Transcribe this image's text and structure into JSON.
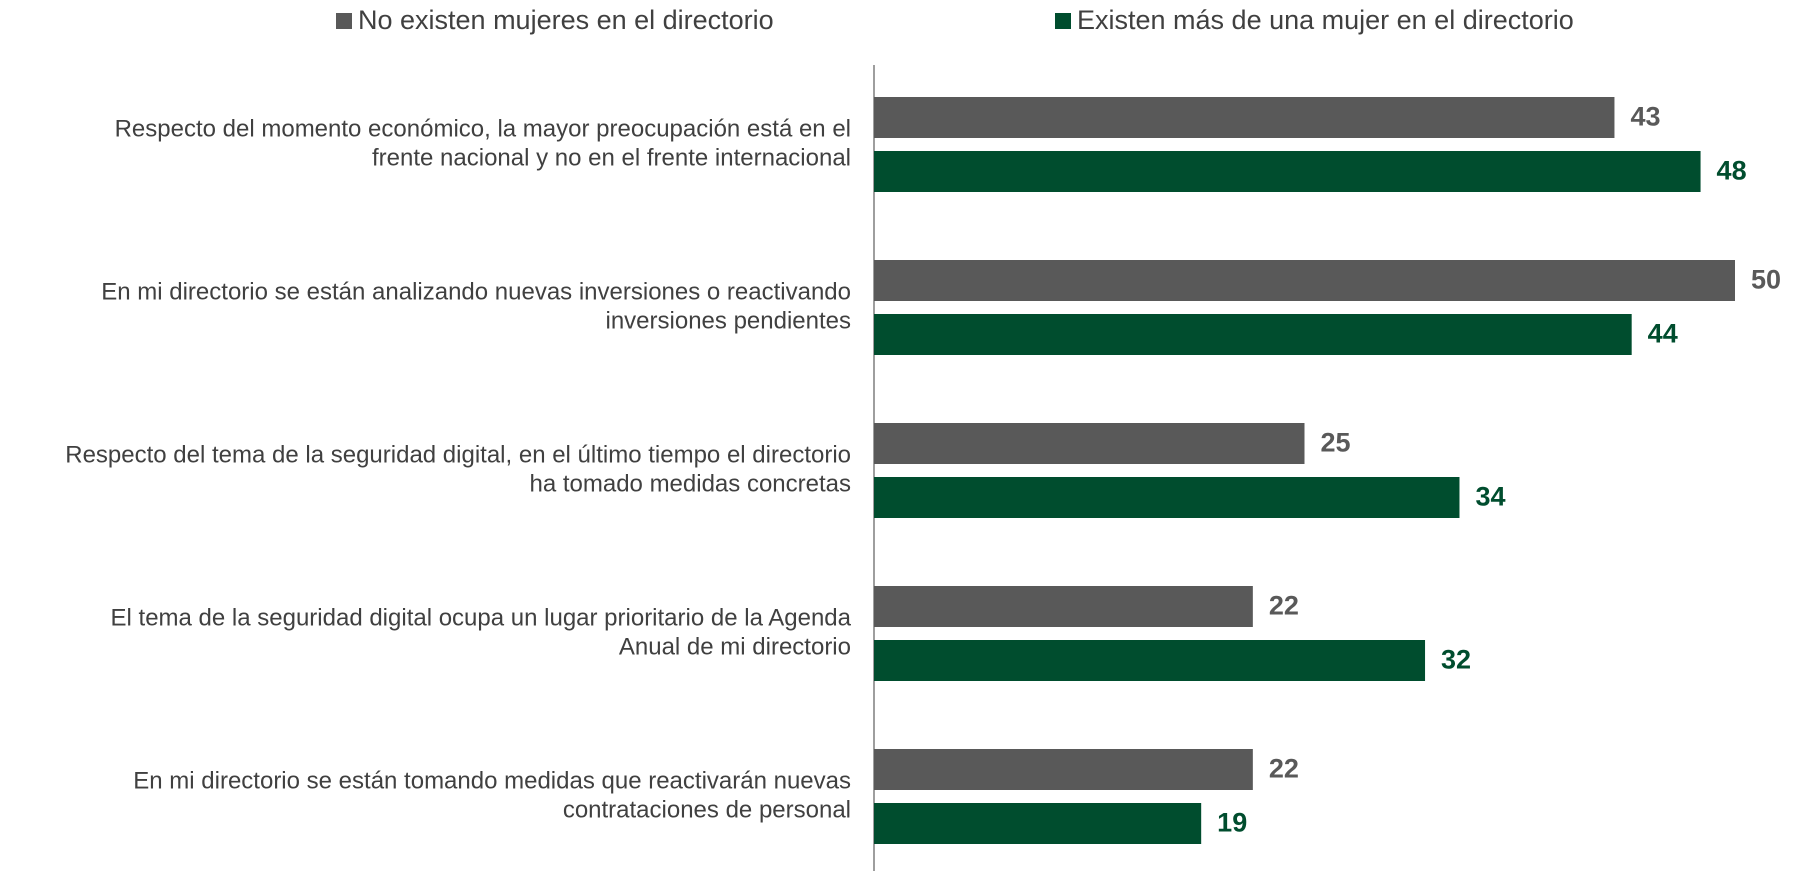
{
  "chart_data": {
    "type": "bar",
    "orientation": "horizontal",
    "categories": [
      [
        "Respecto del momento económico, la mayor preocupación está en el",
        "frente nacional y no en el frente internacional"
      ],
      [
        "En mi directorio se están analizando nuevas inversiones o reactivando",
        "inversiones pendientes"
      ],
      [
        "Respecto del tema de la seguridad digital, en el último tiempo el directorio",
        "ha tomado medidas concretas"
      ],
      [
        "El tema de la seguridad digital ocupa un lugar prioritario de la Agenda",
        "Anual de mi directorio"
      ],
      [
        "En mi directorio se están tomando medidas que reactivarán nuevas",
        "contrataciones de personal"
      ]
    ],
    "series": [
      {
        "name": "No existen mujeres en el directorio",
        "color": "#595959",
        "values": [
          43,
          50,
          25,
          22,
          22
        ]
      },
      {
        "name": "Existen más de una mujer en el directorio",
        "color": "#004d2e",
        "values": [
          48,
          44,
          34,
          32,
          19
        ]
      }
    ],
    "xlim": [
      0,
      50
    ],
    "legend": "top"
  }
}
